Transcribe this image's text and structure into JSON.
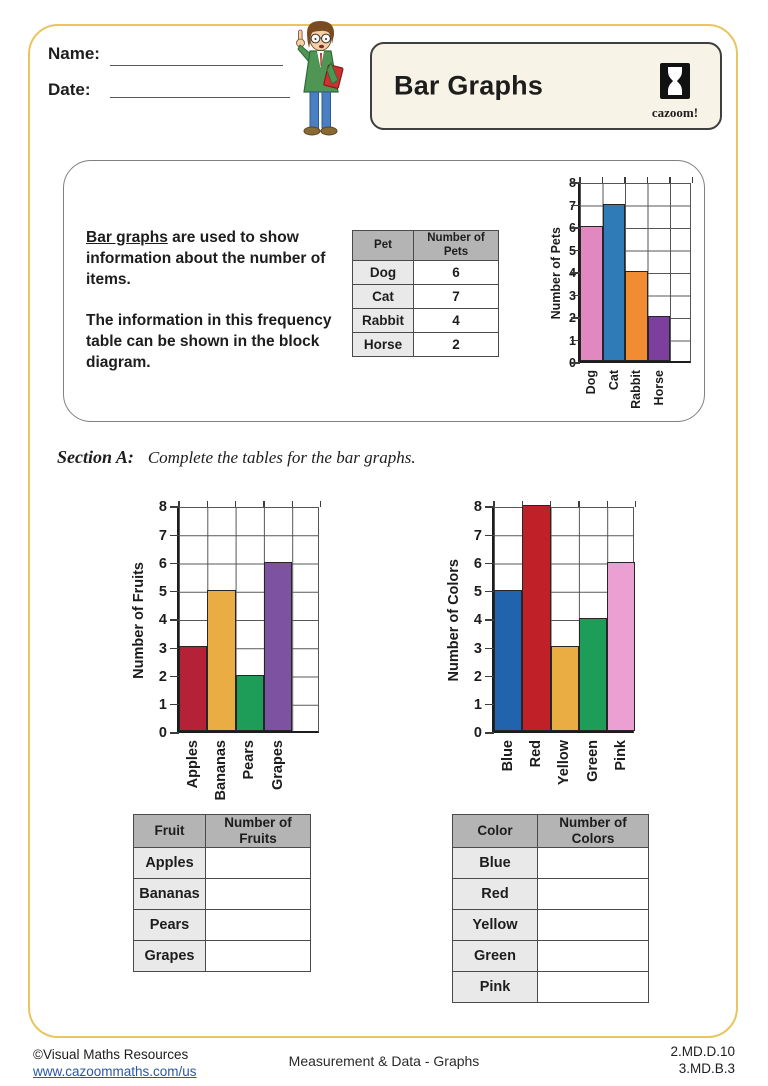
{
  "page": {
    "background": "#ffffff",
    "border_color": "#e9c55f"
  },
  "header": {
    "name_label": "Name:",
    "date_label": "Date:",
    "title": "Bar Graphs",
    "logo_text": "cazoom!"
  },
  "intro": {
    "lead_underlined": "Bar graphs",
    "lead_rest": " are used to show information about the number of items.",
    "para2": "The information in this frequency table can be shown in the block diagram."
  },
  "pet_table": {
    "headers": [
      "Pet",
      "Number of Pets"
    ],
    "rows": [
      [
        "Dog",
        "6"
      ],
      [
        "Cat",
        "7"
      ],
      [
        "Rabbit",
        "4"
      ],
      [
        "Horse",
        "2"
      ]
    ]
  },
  "section_a": {
    "label": "Section A:",
    "instruction": "Complete the tables for the bar graphs."
  },
  "chart_data": [
    {
      "id": "pets",
      "type": "bar",
      "categories": [
        "Dog",
        "Cat",
        "Rabbit",
        "Horse"
      ],
      "values": [
        6,
        7,
        4,
        2
      ],
      "colors": [
        "#e288c0",
        "#2e7bb8",
        "#f18c33",
        "#7c3f9e"
      ],
      "title": "",
      "xlabel": "",
      "ylabel": "Number of Pets",
      "ylim": [
        0,
        8
      ],
      "grid": true,
      "legend": false
    },
    {
      "id": "fruits",
      "type": "bar",
      "categories": [
        "Apples",
        "Bananas",
        "Pears",
        "Grapes"
      ],
      "values": [
        3,
        5,
        2,
        6
      ],
      "colors": [
        "#b52237",
        "#e9ad44",
        "#1d9d58",
        "#7c52a1"
      ],
      "title": "",
      "xlabel": "",
      "ylabel": "Number of Fruits",
      "ylim": [
        0,
        8
      ],
      "grid": true,
      "legend": false
    },
    {
      "id": "colors",
      "type": "bar",
      "categories": [
        "Blue",
        "Red",
        "Yellow",
        "Green",
        "Pink"
      ],
      "values": [
        5,
        8,
        3,
        4,
        6
      ],
      "colors": [
        "#2263ae",
        "#c02128",
        "#e9ad44",
        "#1d9d58",
        "#eb9fd2"
      ],
      "title": "",
      "xlabel": "",
      "ylabel": "Number of Colors",
      "ylim": [
        0,
        8
      ],
      "grid": true,
      "legend": false
    }
  ],
  "fruit_table": {
    "headers": [
      "Fruit",
      "Number of Fruits"
    ],
    "rows": [
      [
        "Apples",
        ""
      ],
      [
        "Bananas",
        ""
      ],
      [
        "Pears",
        ""
      ],
      [
        "Grapes",
        ""
      ]
    ]
  },
  "color_table": {
    "headers": [
      "Color",
      "Number of Colors"
    ],
    "rows": [
      [
        "Blue",
        ""
      ],
      [
        "Red",
        ""
      ],
      [
        "Yellow",
        ""
      ],
      [
        "Green",
        ""
      ],
      [
        "Pink",
        ""
      ]
    ]
  },
  "footer": {
    "copyright": "©Visual Maths Resources",
    "url": "www.cazoommaths.com/us",
    "subject": "Measurement & Data - Graphs",
    "standards": [
      "2.MD.D.10",
      "3.MD.B.3"
    ]
  }
}
